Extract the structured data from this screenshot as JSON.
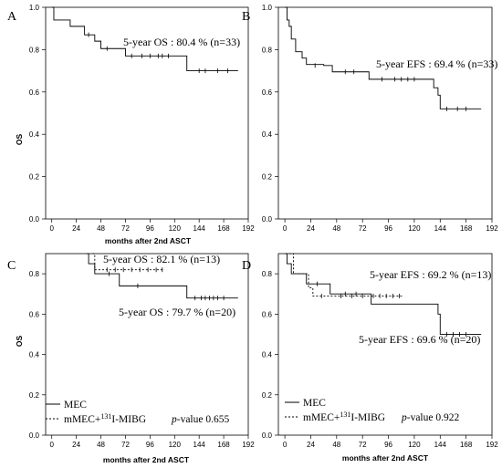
{
  "chart_data": [
    {
      "panel": "A",
      "type": "line",
      "step": true,
      "xlabel": "months after 2nd ASCT",
      "ylabel": "OS",
      "xlim": [
        -6,
        192
      ],
      "ylim": [
        0,
        1.0
      ],
      "xticks": [
        0,
        24,
        48,
        72,
        96,
        120,
        144,
        168,
        192
      ],
      "yticks": [
        0.0,
        0.2,
        0.4,
        0.6,
        0.8,
        1.0
      ],
      "annotations": [
        {
          "text": "5-year OS : 80.4 % (n=33)"
        }
      ],
      "series": [
        {
          "style": "solid",
          "steps": [
            [
              0,
              1.0
            ],
            [
              2,
              0.94
            ],
            [
              18,
              0.91
            ],
            [
              32,
              0.87
            ],
            [
              42,
              0.84
            ],
            [
              48,
              0.805
            ],
            [
              72,
              0.77
            ],
            [
              132,
              0.7
            ],
            [
              182,
              0.7
            ]
          ],
          "censored": [
            [
              36,
              0.87
            ],
            [
              54,
              0.805
            ],
            [
              78,
              0.77
            ],
            [
              88,
              0.77
            ],
            [
              96,
              0.77
            ],
            [
              104,
              0.77
            ],
            [
              108,
              0.77
            ],
            [
              114,
              0.77
            ],
            [
              144,
              0.7
            ],
            [
              150,
              0.7
            ],
            [
              162,
              0.7
            ],
            [
              172,
              0.7
            ]
          ]
        }
      ]
    },
    {
      "panel": "B",
      "type": "line",
      "step": true,
      "xlabel": "",
      "ylabel": "",
      "xlim": [
        -6,
        192
      ],
      "ylim": [
        0,
        1.0
      ],
      "xticks": [
        0,
        24,
        48,
        72,
        96,
        120,
        144,
        168,
        192
      ],
      "yticks": [
        0.0,
        0.2,
        0.4,
        0.6,
        0.8,
        1.0
      ],
      "annotations": [
        {
          "text": "5-year EFS : 69.4 % (n=33)"
        }
      ],
      "series": [
        {
          "style": "solid",
          "steps": [
            [
              0,
              1.0
            ],
            [
              2,
              0.94
            ],
            [
              4,
              0.91
            ],
            [
              6,
              0.85
            ],
            [
              10,
              0.79
            ],
            [
              16,
              0.76
            ],
            [
              20,
              0.73
            ],
            [
              36,
              0.725
            ],
            [
              44,
              0.695
            ],
            [
              78,
              0.66
            ],
            [
              138,
              0.62
            ],
            [
              142,
              0.585
            ],
            [
              144,
              0.52
            ],
            [
              182,
              0.52
            ]
          ],
          "censored": [
            [
              28,
              0.725
            ],
            [
              56,
              0.695
            ],
            [
              64,
              0.695
            ],
            [
              90,
              0.66
            ],
            [
              102,
              0.66
            ],
            [
              108,
              0.66
            ],
            [
              114,
              0.66
            ],
            [
              120,
              0.66
            ],
            [
              150,
              0.52
            ],
            [
              160,
              0.52
            ],
            [
              168,
              0.52
            ]
          ]
        }
      ]
    },
    {
      "panel": "C",
      "type": "line",
      "step": true,
      "xlabel": "months after 2nd ASCT",
      "ylabel": "OS",
      "xlim": [
        -6,
        192
      ],
      "ylim": [
        0,
        0.9
      ],
      "xticks": [
        0,
        24,
        48,
        72,
        96,
        120,
        144,
        168,
        192
      ],
      "yticks": [
        0.0,
        0.2,
        0.4,
        0.6,
        0.8
      ],
      "annotations": [
        {
          "text": "5-year OS : 82.1 % (n=13)"
        },
        {
          "text": "5-year OS : 79.7 % (n=20)"
        }
      ],
      "pvalue": {
        "prefix": "p",
        "suffix": "-value 0.655"
      },
      "legend": {
        "items": [
          {
            "name": "MEC",
            "style": "solid"
          },
          {
            "name": "mMEC+",
            "sup": "131",
            "tail": "I-MIBG",
            "style": "dashed"
          }
        ]
      },
      "series": [
        {
          "style": "solid",
          "steps": [
            [
              34,
              0.9
            ],
            [
              36,
              0.85
            ],
            [
              42,
              0.8
            ],
            [
              66,
              0.74
            ],
            [
              132,
              0.68
            ],
            [
              182,
              0.68
            ]
          ],
          "censored": [
            [
              56,
              0.8
            ],
            [
              84,
              0.74
            ],
            [
              140,
              0.68
            ],
            [
              146,
              0.68
            ],
            [
              150,
              0.68
            ],
            [
              154,
              0.68
            ],
            [
              158,
              0.68
            ],
            [
              162,
              0.68
            ],
            [
              168,
              0.68
            ]
          ]
        },
        {
          "style": "dashed",
          "steps": [
            [
              40,
              0.9
            ],
            [
              42,
              0.82
            ],
            [
              110,
              0.82
            ]
          ],
          "censored": [
            [
              54,
              0.82
            ],
            [
              62,
              0.82
            ],
            [
              70,
              0.82
            ],
            [
              78,
              0.82
            ],
            [
              86,
              0.82
            ],
            [
              94,
              0.82
            ],
            [
              102,
              0.82
            ],
            [
              108,
              0.82
            ]
          ]
        }
      ]
    },
    {
      "panel": "D",
      "type": "line",
      "step": true,
      "xlabel": "months after 2nd ASCT",
      "ylabel": "",
      "xlim": [
        -6,
        192
      ],
      "ylim": [
        0,
        0.9
      ],
      "xticks": [
        0,
        24,
        48,
        72,
        96,
        120,
        144,
        168,
        192
      ],
      "yticks": [
        0.0,
        0.2,
        0.4,
        0.6,
        0.8
      ],
      "annotations": [
        {
          "text": "5-year EFS : 69.2 % (n=13)"
        },
        {
          "text": "5-year EFS : 69.6 % (n=20)"
        }
      ],
      "pvalue": {
        "prefix": "p",
        "suffix": "-value 0.922"
      },
      "legend": {
        "items": [
          {
            "name": "MEC",
            "style": "solid"
          },
          {
            "name": "mMEC+",
            "sup": "131",
            "tail": "I-MIBG",
            "style": "dashed"
          }
        ]
      },
      "series": [
        {
          "style": "solid",
          "steps": [
            [
              0,
              0.9
            ],
            [
              2,
              0.85
            ],
            [
              6,
              0.8
            ],
            [
              14,
              0.8
            ],
            [
              20,
              0.75
            ],
            [
              42,
              0.7
            ],
            [
              80,
              0.65
            ],
            [
              142,
              0.6
            ],
            [
              144,
              0.5
            ],
            [
              182,
              0.5
            ]
          ],
          "censored": [
            [
              30,
              0.75
            ],
            [
              56,
              0.7
            ],
            [
              66,
              0.7
            ],
            [
              150,
              0.5
            ],
            [
              156,
              0.5
            ],
            [
              162,
              0.5
            ],
            [
              168,
              0.5
            ]
          ]
        },
        {
          "style": "dashed",
          "steps": [
            [
              4,
              0.9
            ],
            [
              8,
              0.8
            ],
            [
              22,
              0.73
            ],
            [
              26,
              0.69
            ],
            [
              110,
              0.69
            ]
          ],
          "censored": [
            [
              34,
              0.69
            ],
            [
              52,
              0.69
            ],
            [
              62,
              0.69
            ],
            [
              72,
              0.69
            ],
            [
              82,
              0.69
            ],
            [
              88,
              0.69
            ],
            [
              94,
              0.69
            ],
            [
              100,
              0.69
            ],
            [
              106,
              0.69
            ]
          ]
        }
      ]
    }
  ]
}
